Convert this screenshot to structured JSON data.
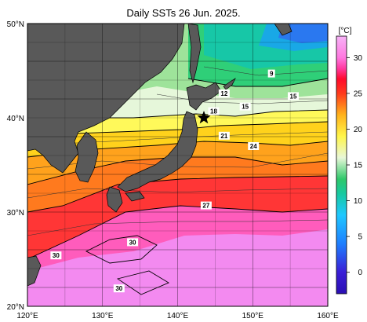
{
  "title": "Daily SSTs 26 Jun. 2025.",
  "map": {
    "lon_min": 120,
    "lon_max": 160,
    "lat_min": 20,
    "lat_max": 50,
    "lon_ticks": [
      "120°E",
      "130°E",
      "140°E",
      "150°E",
      "160°E"
    ],
    "lat_ticks": [
      "50°N",
      "40°N",
      "30°N",
      "20°N"
    ],
    "grid": true,
    "land_color": "#595959",
    "marker": {
      "symbol": "star",
      "lon": 143.5,
      "lat": 40
    }
  },
  "contour_labels": [
    {
      "text": "9",
      "lon": 152.5,
      "lat": 44.7
    },
    {
      "text": "12",
      "lon": 146.2,
      "lat": 42.6
    },
    {
      "text": "15",
      "lon": 149.0,
      "lat": 41.2
    },
    {
      "text": "15",
      "lon": 155.4,
      "lat": 42.3
    },
    {
      "text": "18",
      "lon": 144.8,
      "lat": 40.7
    },
    {
      "text": "21",
      "lon": 146.2,
      "lat": 38.1
    },
    {
      "text": "24",
      "lon": 150.1,
      "lat": 37.0
    },
    {
      "text": "27",
      "lon": 143.8,
      "lat": 30.7
    },
    {
      "text": "30",
      "lon": 123.8,
      "lat": 25.4
    },
    {
      "text": "30",
      "lon": 134.0,
      "lat": 26.8
    },
    {
      "text": "30",
      "lon": 132.2,
      "lat": 21.9
    }
  ],
  "colorbar": {
    "unit": "[°C]",
    "min": -3,
    "max": 33,
    "ticks": [
      "0",
      "5",
      "10",
      "15",
      "20",
      "25",
      "30"
    ],
    "tick_values": [
      0,
      5,
      10,
      15,
      20,
      25,
      30
    ],
    "stops": [
      {
        "v": -3,
        "color": "#2a0fb3"
      },
      {
        "v": 0,
        "color": "#3a1ed6"
      },
      {
        "v": 4,
        "color": "#1e7fff"
      },
      {
        "v": 8,
        "color": "#1ec8ff"
      },
      {
        "v": 11,
        "color": "#17c9a0"
      },
      {
        "v": 13,
        "color": "#2ec86a"
      },
      {
        "v": 16,
        "color": "#e8f7d8"
      },
      {
        "v": 19,
        "color": "#fff64a"
      },
      {
        "v": 22,
        "color": "#ffb21c"
      },
      {
        "v": 25,
        "color": "#ff3a1c"
      },
      {
        "v": 27,
        "color": "#ff0a2c"
      },
      {
        "v": 28.5,
        "color": "#ff3aa0"
      },
      {
        "v": 30,
        "color": "#ff78e0"
      },
      {
        "v": 33,
        "color": "#f7b3f7"
      }
    ]
  }
}
